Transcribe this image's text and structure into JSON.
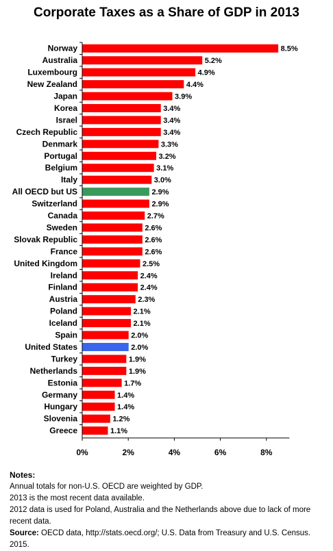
{
  "chart_data": {
    "type": "bar",
    "orientation": "horizontal",
    "title": "Corporate Taxes as a Share of GDP in 2013",
    "categories": [
      "Norway",
      "Australia",
      "Luxembourg",
      "New Zealand",
      "Japan",
      "Korea",
      "Israel",
      "Czech Republic",
      "Denmark",
      "Portugal",
      "Belgium",
      "Italy",
      "All OECD but US",
      "Switzerland",
      "Canada",
      "Sweden",
      "Slovak Republic",
      "France",
      "United Kingdom",
      "Ireland",
      "Finland",
      "Austria",
      "Poland",
      "Iceland",
      "Spain",
      "United States",
      "Turkey",
      "Netherlands",
      "Estonia",
      "Germany",
      "Hungary",
      "Slovenia",
      "Greece"
    ],
    "values": [
      8.5,
      5.2,
      4.9,
      4.4,
      3.9,
      3.4,
      3.4,
      3.4,
      3.3,
      3.2,
      3.1,
      3.0,
      2.9,
      2.9,
      2.7,
      2.6,
      2.6,
      2.6,
      2.5,
      2.4,
      2.4,
      2.3,
      2.1,
      2.1,
      2.0,
      2.0,
      1.9,
      1.9,
      1.7,
      1.4,
      1.4,
      1.2,
      1.1
    ],
    "value_labels": [
      "8.5%",
      "5.2%",
      "4.9%",
      "4.4%",
      "3.9%",
      "3.4%",
      "3.4%",
      "3.4%",
      "3.3%",
      "3.2%",
      "3.1%",
      "3.0%",
      "2.9%",
      "2.9%",
      "2.7%",
      "2.6%",
      "2.6%",
      "2.6%",
      "2.5%",
      "2.4%",
      "2.4%",
      "2.3%",
      "2.1%",
      "2.1%",
      "2.0%",
      "2.0%",
      "1.9%",
      "1.9%",
      "1.7%",
      "1.4%",
      "1.4%",
      "1.2%",
      "1.1%"
    ],
    "highlight": {
      "All OECD but US": "#3a9a5c",
      "United States": "#3b66ec"
    },
    "bar_color": "#ff0000",
    "xlim": [
      0,
      9
    ],
    "xticks": [
      0,
      2,
      4,
      6,
      8
    ],
    "xtick_labels": [
      "0%",
      "2%",
      "4%",
      "6%",
      "8%"
    ],
    "grid": false,
    "legend": "none"
  },
  "notes": {
    "header": "Notes:",
    "lines": [
      "Annual totals for non-U.S. OECD are weighted by GDP.",
      "2013 is the most recent data available.",
      "2012 data is used for Poland, Australia and the Netherlands above due to lack of more recent data."
    ],
    "source_label": "Source:",
    "source_text": " OECD data, http://stats.oecd.org/; U.S. Data from Treasury and U.S. Census. 2015."
  }
}
